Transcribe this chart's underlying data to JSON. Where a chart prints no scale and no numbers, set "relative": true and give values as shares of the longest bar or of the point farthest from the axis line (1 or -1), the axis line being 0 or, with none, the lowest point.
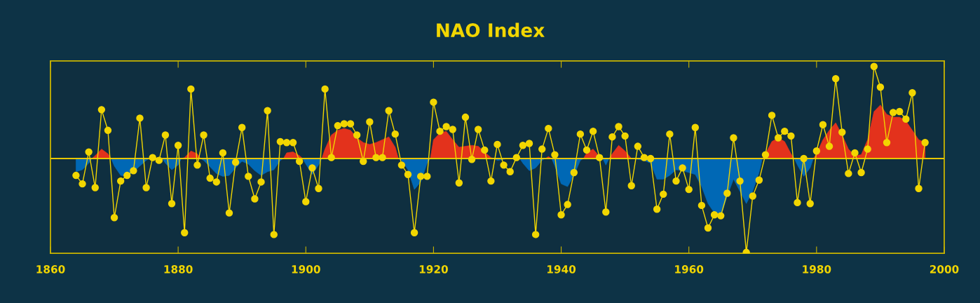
{
  "chart_data": {
    "type": "line",
    "title": "NAO Index",
    "relative": true,
    "ref_lines": [
      {
        "axis": "y",
        "value": 0,
        "color": "#e8c800"
      }
    ],
    "xlim": [
      1860,
      2000
    ],
    "xticks": [
      1860,
      1880,
      1900,
      1920,
      1940,
      1960,
      1980,
      2000
    ],
    "x": [
      1864,
      1865,
      1866,
      1867,
      1868,
      1869,
      1870,
      1871,
      1872,
      1873,
      1874,
      1875,
      1876,
      1877,
      1878,
      1879,
      1880,
      1881,
      1882,
      1883,
      1884,
      1885,
      1886,
      1887,
      1888,
      1889,
      1890,
      1891,
      1892,
      1893,
      1894,
      1895,
      1896,
      1897,
      1898,
      1899,
      1900,
      1901,
      1902,
      1903,
      1904,
      1905,
      1906,
      1907,
      1908,
      1909,
      1910,
      1911,
      1912,
      1913,
      1914,
      1915,
      1916,
      1917,
      1918,
      1919,
      1920,
      1921,
      1922,
      1923,
      1924,
      1925,
      1926,
      1927,
      1928,
      1929,
      1930,
      1931,
      1932,
      1933,
      1934,
      1935,
      1936,
      1937,
      1938,
      1939,
      1940,
      1941,
      1942,
      1943,
      1944,
      1945,
      1946,
      1947,
      1948,
      1949,
      1950,
      1951,
      1952,
      1953,
      1954,
      1955,
      1956,
      1957,
      1958,
      1959,
      1960,
      1961,
      1962,
      1963,
      1964,
      1965,
      1966,
      1967,
      1968,
      1969,
      1970,
      1971,
      1972,
      1973,
      1974,
      1975,
      1976,
      1977,
      1978,
      1979,
      1980,
      1981,
      1982,
      1983,
      1984,
      1985,
      1986,
      1987,
      1988,
      1989,
      1990,
      1991,
      1992,
      1993,
      1994,
      1995,
      1996,
      1997
    ],
    "series": [
      {
        "type": "area",
        "color": "#e3321c",
        "values": [
          null,
          null,
          null,
          0.03,
          0.1,
          0.05,
          null,
          null,
          null,
          null,
          null,
          null,
          0.0,
          0.01,
          null,
          null,
          null,
          0.01,
          0.08,
          0.05,
          null,
          null,
          null,
          null,
          null,
          null,
          null,
          null,
          null,
          null,
          null,
          null,
          null,
          0.06,
          0.07,
          0.03,
          null,
          null,
          null,
          0.1,
          0.25,
          0.3,
          0.32,
          0.3,
          0.22,
          0.17,
          0.15,
          0.17,
          0.2,
          0.23,
          0.12,
          null,
          null,
          null,
          null,
          null,
          0.2,
          0.27,
          0.29,
          0.2,
          0.12,
          0.13,
          0.14,
          0.13,
          0.07,
          0.01,
          null,
          null,
          0.0,
          0.01,
          null,
          null,
          null,
          null,
          0.02,
          null,
          null,
          null,
          null,
          null,
          0.06,
          0.1,
          0.02,
          null,
          0.05,
          0.14,
          0.08,
          0.0,
          null,
          null,
          null,
          null,
          null,
          null,
          null,
          null,
          null,
          null,
          null,
          null,
          null,
          null,
          null,
          null,
          null,
          null,
          null,
          null,
          0.05,
          0.18,
          0.22,
          0.18,
          0.05,
          null,
          null,
          null,
          0.05,
          0.2,
          0.3,
          0.38,
          0.25,
          0.1,
          0.03,
          0.04,
          0.2,
          0.5,
          0.57,
          0.47,
          0.44,
          0.44,
          0.4,
          0.3,
          0.2,
          0.17
        ]
      },
      {
        "type": "area",
        "color": "#0068b5",
        "values": [
          -0.14,
          -0.12,
          -0.05,
          null,
          null,
          null,
          -0.08,
          -0.18,
          -0.19,
          -0.14,
          -0.08,
          -0.02,
          null,
          null,
          -0.05,
          -0.12,
          -0.07,
          null,
          null,
          null,
          -0.02,
          -0.09,
          -0.16,
          -0.19,
          -0.18,
          -0.1,
          -0.03,
          -0.06,
          -0.13,
          -0.18,
          -0.14,
          -0.12,
          -0.02,
          null,
          null,
          null,
          -0.06,
          -0.17,
          -0.07,
          null,
          null,
          null,
          null,
          null,
          null,
          null,
          null,
          null,
          null,
          null,
          null,
          -0.02,
          -0.12,
          -0.33,
          -0.25,
          -0.05,
          null,
          null,
          null,
          null,
          null,
          null,
          null,
          null,
          null,
          null,
          -0.02,
          -0.01,
          null,
          null,
          -0.05,
          -0.13,
          -0.1,
          -0.02,
          null,
          -0.08,
          -0.27,
          -0.3,
          -0.18,
          -0.02,
          null,
          null,
          null,
          -0.07,
          null,
          null,
          null,
          null,
          -0.01,
          -0.02,
          -0.05,
          -0.22,
          -0.22,
          -0.18,
          -0.12,
          -0.13,
          -0.15,
          -0.17,
          -0.3,
          -0.48,
          -0.58,
          -0.62,
          -0.4,
          -0.22,
          -0.35,
          -0.48,
          -0.35,
          -0.15,
          null,
          null,
          null,
          null,
          null,
          -0.07,
          -0.19,
          -0.1,
          null,
          null,
          null,
          null,
          null,
          null,
          null,
          null,
          null,
          null,
          null,
          null,
          null,
          null,
          null,
          null,
          null,
          null
        ]
      },
      {
        "type": "line",
        "color": "#f2d600",
        "marker": "circle",
        "values": [
          -0.18,
          -0.27,
          0.07,
          -0.31,
          0.52,
          0.3,
          -0.63,
          -0.24,
          -0.18,
          -0.13,
          0.43,
          -0.31,
          0.01,
          -0.02,
          0.25,
          -0.48,
          0.14,
          -0.79,
          0.74,
          -0.07,
          0.25,
          -0.21,
          -0.25,
          0.06,
          -0.58,
          -0.04,
          0.33,
          -0.19,
          -0.43,
          -0.25,
          0.51,
          -0.81,
          0.18,
          0.17,
          0.17,
          -0.03,
          -0.46,
          -0.1,
          -0.32,
          0.74,
          0.01,
          0.35,
          0.37,
          0.37,
          0.25,
          -0.03,
          0.39,
          0.01,
          0.01,
          0.51,
          0.26,
          -0.07,
          -0.17,
          -0.79,
          -0.19,
          -0.19,
          0.6,
          0.29,
          0.34,
          0.31,
          -0.26,
          0.44,
          -0.01,
          0.31,
          0.09,
          -0.24,
          0.15,
          -0.07,
          -0.14,
          0.01,
          0.14,
          0.16,
          -0.81,
          0.1,
          0.32,
          0.04,
          -0.6,
          -0.49,
          -0.15,
          0.26,
          0.09,
          0.29,
          0.01,
          -0.57,
          0.23,
          0.34,
          0.24,
          -0.29,
          0.13,
          0.01,
          0.0,
          -0.54,
          -0.38,
          0.26,
          -0.24,
          -0.1,
          -0.33,
          0.33,
          -0.5,
          -0.74,
          -0.6,
          -0.61,
          -0.37,
          0.22,
          -0.24,
          -1.0,
          -0.4,
          -0.23,
          0.04,
          0.46,
          0.22,
          0.29,
          0.24,
          -0.47,
          0.0,
          -0.48,
          0.08,
          0.36,
          0.13,
          0.85,
          0.28,
          -0.16,
          0.06,
          -0.15,
          0.1,
          0.98,
          0.76,
          0.17,
          0.49,
          0.5,
          0.42,
          0.7,
          -0.32,
          0.17
        ]
      }
    ]
  }
}
